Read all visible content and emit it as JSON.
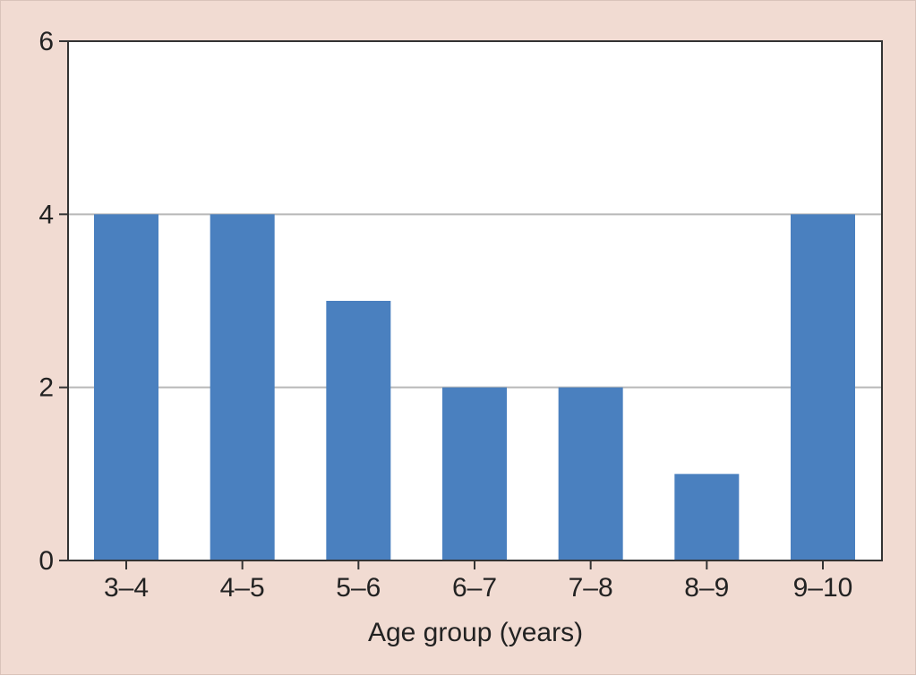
{
  "chart_data": {
    "type": "bar",
    "title": "",
    "xlabel": "Age group (years)",
    "ylabel": "",
    "categories": [
      "3–4",
      "4–5",
      "5–6",
      "6–7",
      "7–8",
      "8–9",
      "9–10"
    ],
    "values": [
      4,
      4,
      3,
      2,
      2,
      1,
      4
    ],
    "ylim": [
      0,
      6
    ],
    "yticks": [
      "0",
      "2",
      "4",
      "6"
    ],
    "grid": "horizontal",
    "legend": "none",
    "colors": {
      "bar": "#4a80bf",
      "background": "#f1dbd2",
      "plot_background": "#ffffff",
      "gridline": "#b8b8b8",
      "axis": "#333333"
    }
  }
}
